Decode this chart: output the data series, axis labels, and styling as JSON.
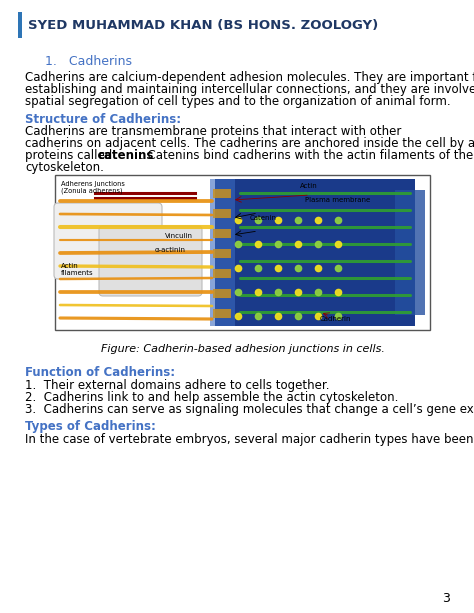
{
  "title": "SYED MUHAMMAD KHAN (BS HONS. ZOOLOGY)",
  "heading": "1.   Cadherins",
  "para1_lines": [
    "Cadherins are calcium-dependent adhesion molecules. They are important for",
    "establishing and maintaining intercellular connections, and they are involved in the",
    "spatial segregation of cell types and to the organization of animal form."
  ],
  "subheading": "Structure of Cadherins:",
  "struct_lines": [
    "Cadherins are transmembrane proteins that interact with other",
    "cadherins on adjacent cells. The cadherins are anchored inside the cell by a complex of",
    "proteins called "
  ],
  "bold_word": "catenins",
  "struct_end": ". Catenins bind cadherins with the actin filaments of the",
  "struct_last": "cytoskeleton.",
  "fig_caption": "Figure: Cadherin-based adhesion junctions in cells.",
  "func_heading": "Function of Cadherins:",
  "func_items": [
    "Their external domains adhere to cells together.",
    "Cadherins link to and help assemble the actin cytoskeleton.",
    "Cadherins can serve as signaling molecules that change a cell’s gene expression."
  ],
  "types_heading": "Types of Cadherins:",
  "types_text": "In the case of vertebrate embryos, several major cadherin types have been identified:",
  "page_num": "3",
  "title_color": "#1F3864",
  "heading_color": "#4472C4",
  "subheading_color": "#4472C4",
  "func_color": "#4472C4",
  "types_color": "#4472C4",
  "border_color": "#2E75B6",
  "bg_color": "#FFFFFF",
  "body_font_size": 8.5,
  "title_font_size": 9.5,
  "heading_font_size": 9.0
}
